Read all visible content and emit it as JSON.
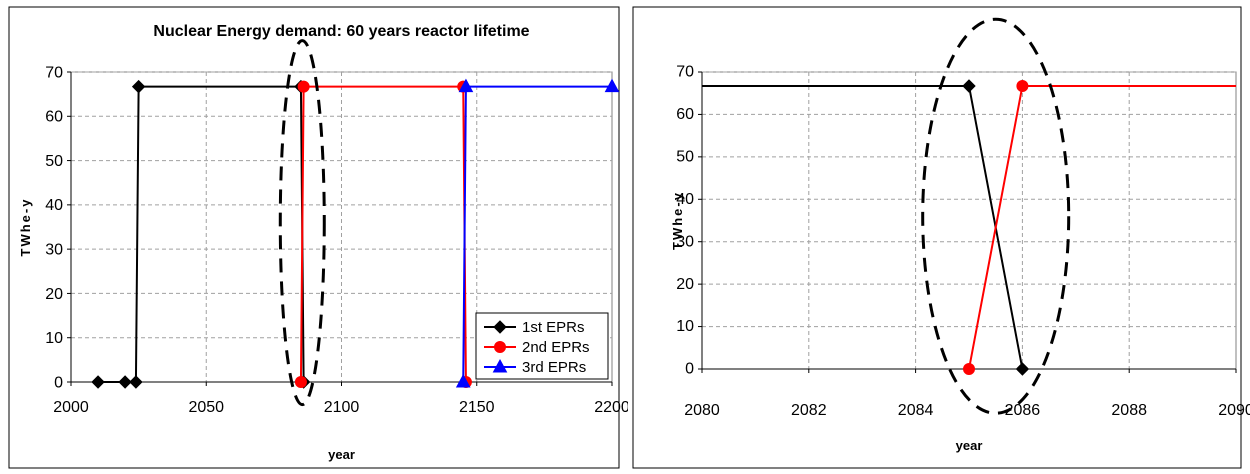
{
  "chart_data": [
    {
      "type": "line",
      "title": "Nuclear Energy demand: 60 years reactor lifetime",
      "xlabel": "year",
      "ylabel": "TWhe-y",
      "xlim": [
        2000,
        2200
      ],
      "ylim": [
        0,
        70
      ],
      "xticks": [
        "2000",
        "2050",
        "2100",
        "2150",
        "2200"
      ],
      "yticks": [
        "0",
        "10",
        "20",
        "30",
        "40",
        "50",
        "60",
        "70"
      ],
      "grid": true,
      "legend": "bottom-right",
      "series": [
        {
          "name": "1st EPRs",
          "color": "#000000",
          "marker": "diamond",
          "x": [
            2010,
            2020,
            2024,
            2025,
            2085,
            2086
          ],
          "y": [
            0,
            0,
            0,
            66.7,
            66.7,
            0
          ]
        },
        {
          "name": "2nd EPRs",
          "color": "#ff0000",
          "marker": "circle",
          "x": [
            2085,
            2086,
            2145,
            2146
          ],
          "y": [
            0,
            66.7,
            66.7,
            0
          ]
        },
        {
          "name": "3rd EPRs",
          "color": "#0000ff",
          "marker": "triangle",
          "x": [
            2145,
            2146,
            2200
          ],
          "y": [
            0,
            66.7,
            66.7
          ]
        }
      ],
      "annotation": "dashed ellipse around the 1st to 2nd EPR transition"
    },
    {
      "type": "line",
      "title": "",
      "xlabel": "year",
      "ylabel": "TWhe-y",
      "xlim": [
        2080,
        2090
      ],
      "ylim": [
        0,
        70
      ],
      "xticks": [
        "2080",
        "2082",
        "2084",
        "2086",
        "2088",
        "2090"
      ],
      "yticks": [
        "0",
        "10",
        "20",
        "30",
        "40",
        "50",
        "60",
        "70"
      ],
      "grid": true,
      "series": [
        {
          "color": "#000000",
          "marker": "diamond",
          "x": [
            2080,
            2085,
            2086
          ],
          "y": [
            66.7,
            66.7,
            0
          ]
        },
        {
          "color": "#ff0000",
          "marker": "circle",
          "x": [
            2085,
            2086,
            2090
          ],
          "y": [
            0,
            66.7,
            66.7
          ]
        }
      ],
      "annotation": "dashed ellipse around the crossover between 2085 and 2086"
    }
  ]
}
